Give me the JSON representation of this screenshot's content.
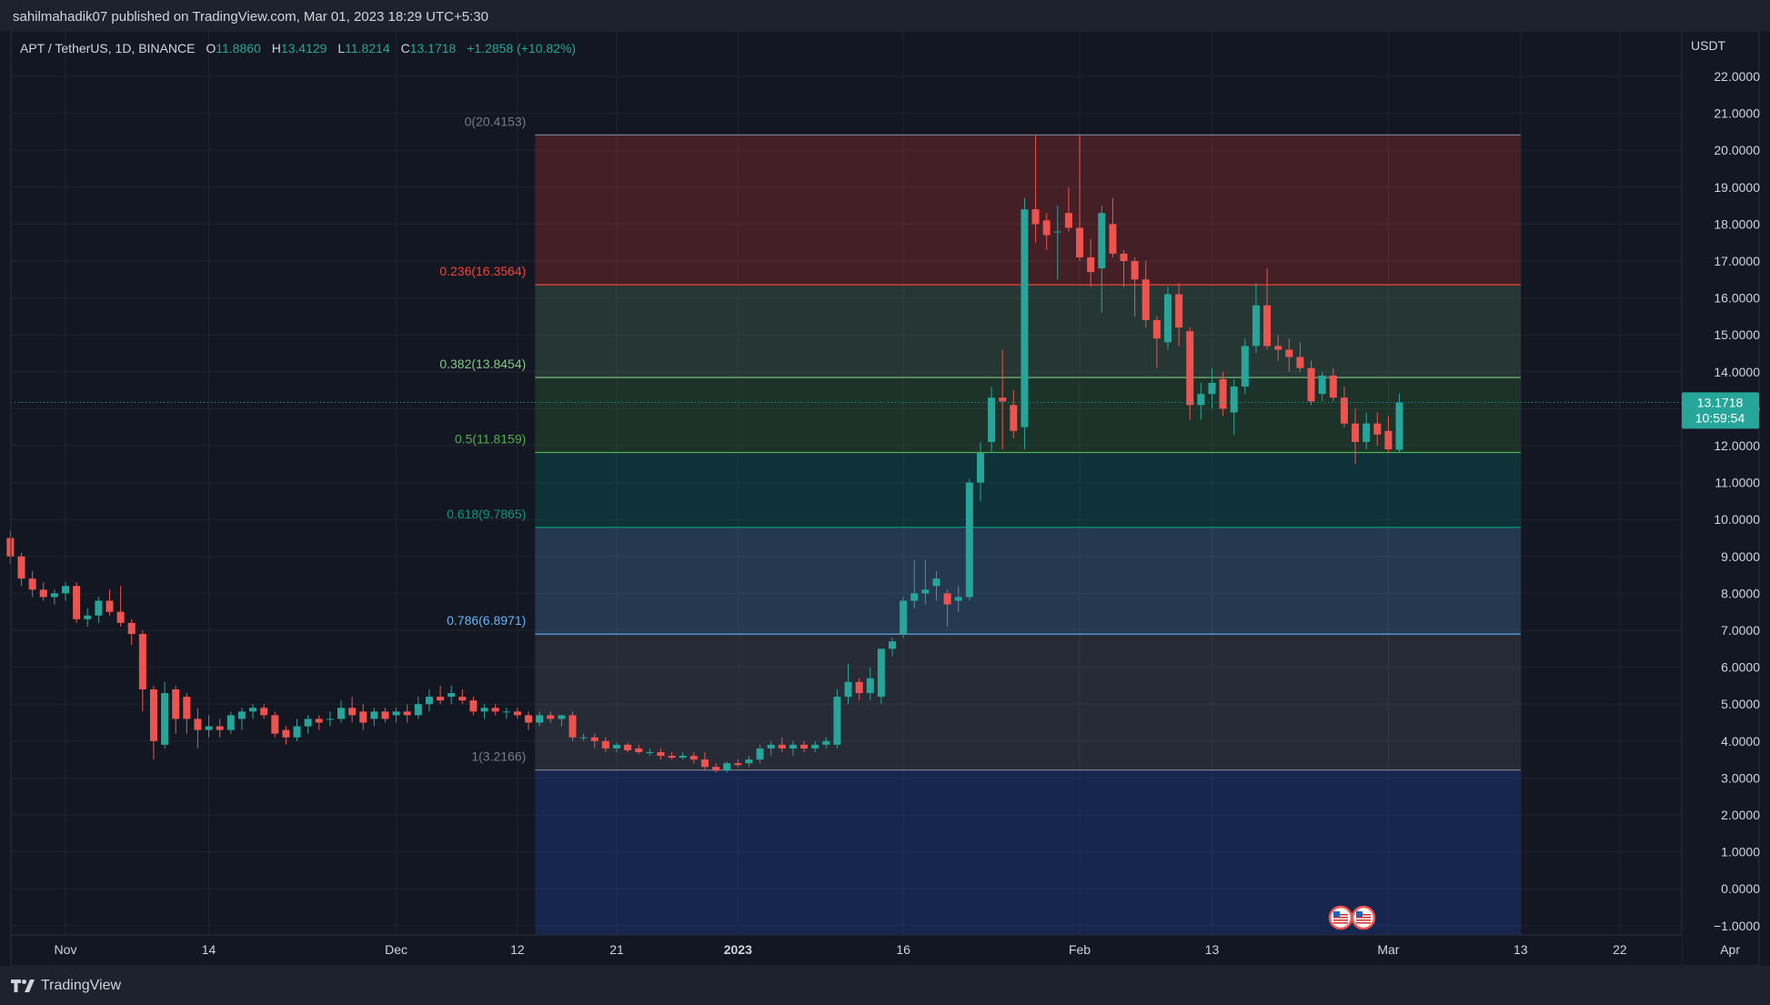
{
  "publish_line": "sahilmahadik07 published on TradingView.com, Mar 01, 2023 18:29 UTC+5:30",
  "legend": {
    "symbol": "APT / TetherUS, 1D, BINANCE",
    "open_label": "O",
    "open": "11.8860",
    "high_label": "H",
    "high": "13.4129",
    "low_label": "L",
    "low": "11.8214",
    "close_label": "C",
    "close": "13.1718",
    "change": "+1.2858 (+10.82%)"
  },
  "footer": {
    "brand": "TradingView"
  },
  "colors": {
    "background": "#131722",
    "up": "#26a69a",
    "down": "#ef5350",
    "grid": "#1f2430",
    "price_tag": "#26a69a"
  },
  "chart_data": {
    "type": "candlestick",
    "currency_label": "USDT",
    "ylim": [
      -1.3,
      23.3
    ],
    "y_ticks": [
      "22.0000",
      "21.0000",
      "20.0000",
      "19.0000",
      "18.0000",
      "17.0000",
      "16.0000",
      "15.0000",
      "14.0000",
      "13.0000",
      "12.0000",
      "11.0000",
      "10.0000",
      "9.0000",
      "8.0000",
      "7.0000",
      "6.0000",
      "5.0000",
      "4.0000",
      "3.0000",
      "2.0000",
      "1.0000",
      "0.0000",
      "−1.0000"
    ],
    "x_ticks": [
      {
        "label": "Nov",
        "day": 0
      },
      {
        "label": "14",
        "day": 13
      },
      {
        "label": "Dec",
        "day": 30
      },
      {
        "label": "12",
        "day": 41
      },
      {
        "label": "21",
        "day": 50
      },
      {
        "label": "2023",
        "day": 61
      },
      {
        "label": "16",
        "day": 76
      },
      {
        "label": "Feb",
        "day": 92
      },
      {
        "label": "13",
        "day": 104
      },
      {
        "label": "Mar",
        "day": 120
      },
      {
        "label": "13",
        "day": 132
      },
      {
        "label": "22",
        "day": 141
      },
      {
        "label": "Apr",
        "day": 151
      }
    ],
    "x_range_days": [
      -5,
      152
    ],
    "last_price": {
      "value": 13.1718,
      "label": "13.1718",
      "countdown": "10:59:54"
    },
    "fibonacci": {
      "start_day": 42.6,
      "end_day": 132,
      "levels": [
        {
          "ratio_label": "0(20.4153)",
          "price": 20.4153,
          "color": "#787b86",
          "fill": "#f44336",
          "fill_opacity": 0.22
        },
        {
          "ratio_label": "0.236(16.3564)",
          "price": 16.3564,
          "color": "#f44336",
          "fill": "#81c784",
          "fill_opacity": 0.18
        },
        {
          "ratio_label": "0.382(13.8454)",
          "price": 13.8454,
          "color": "#81c784",
          "fill": "#4caf50",
          "fill_opacity": 0.18
        },
        {
          "ratio_label": "0.5(11.8159)",
          "price": 11.8159,
          "color": "#4caf50",
          "fill": "#009688",
          "fill_opacity": 0.22
        },
        {
          "ratio_label": "0.618(9.7865)",
          "price": 9.7865,
          "color": "#089981",
          "fill": "#64b5f6",
          "fill_opacity": 0.22
        },
        {
          "ratio_label": "0.786(6.8971)",
          "price": 6.8971,
          "color": "#64b5f6",
          "fill": "#787b86",
          "fill_opacity": 0.2
        },
        {
          "ratio_label": "1(3.2166)",
          "price": 3.2166,
          "color": "#787b86",
          "fill": "#2962ff",
          "fill_opacity": 0.2
        }
      ]
    },
    "candles": [
      [
        -5,
        9.5,
        9.7,
        8.8,
        9.0
      ],
      [
        -4,
        9.0,
        9.1,
        8.2,
        8.4
      ],
      [
        -3,
        8.4,
        8.6,
        7.9,
        8.1
      ],
      [
        -2,
        8.1,
        8.3,
        7.8,
        7.9
      ],
      [
        -1,
        7.9,
        8.1,
        7.7,
        8.0
      ],
      [
        0,
        8.0,
        8.3,
        7.8,
        8.2
      ],
      [
        1,
        8.2,
        8.3,
        7.2,
        7.3
      ],
      [
        2,
        7.3,
        7.6,
        7.1,
        7.4
      ],
      [
        3,
        7.4,
        7.9,
        7.2,
        7.8
      ],
      [
        4,
        7.8,
        8.1,
        7.4,
        7.5
      ],
      [
        5,
        7.5,
        8.2,
        7.1,
        7.2
      ],
      [
        6,
        7.2,
        7.3,
        6.6,
        6.9
      ],
      [
        7,
        6.9,
        7.0,
        4.8,
        5.4
      ],
      [
        8,
        5.4,
        5.5,
        3.5,
        4.0
      ],
      [
        9,
        3.9,
        5.6,
        3.8,
        5.3
      ],
      [
        10,
        5.4,
        5.5,
        4.2,
        4.6
      ],
      [
        11,
        5.2,
        5.3,
        4.2,
        4.6
      ],
      [
        12,
        4.6,
        4.9,
        3.8,
        4.3
      ],
      [
        13,
        4.3,
        4.7,
        4.1,
        4.4
      ],
      [
        14,
        4.4,
        4.6,
        4.1,
        4.3
      ],
      [
        15,
        4.3,
        4.8,
        4.2,
        4.7
      ],
      [
        16,
        4.6,
        4.9,
        4.3,
        4.8
      ],
      [
        17,
        4.8,
        5.0,
        4.6,
        4.9
      ],
      [
        18,
        4.9,
        5.0,
        4.6,
        4.7
      ],
      [
        19,
        4.7,
        4.8,
        4.1,
        4.2
      ],
      [
        20,
        4.3,
        4.4,
        3.9,
        4.1
      ],
      [
        21,
        4.1,
        4.6,
        4.0,
        4.4
      ],
      [
        22,
        4.4,
        4.7,
        4.2,
        4.6
      ],
      [
        23,
        4.6,
        4.7,
        4.3,
        4.5
      ],
      [
        24,
        4.6,
        4.8,
        4.4,
        4.6
      ],
      [
        25,
        4.6,
        5.1,
        4.5,
        4.9
      ],
      [
        26,
        4.9,
        5.2,
        4.5,
        4.7
      ],
      [
        27,
        4.8,
        5.0,
        4.3,
        4.5
      ],
      [
        28,
        4.6,
        4.9,
        4.4,
        4.8
      ],
      [
        29,
        4.8,
        4.9,
        4.5,
        4.6
      ],
      [
        30,
        4.7,
        4.9,
        4.5,
        4.8
      ],
      [
        31,
        4.8,
        5.0,
        4.5,
        4.7
      ],
      [
        32,
        4.7,
        5.2,
        4.6,
        5.0
      ],
      [
        33,
        5.0,
        5.4,
        4.8,
        5.2
      ],
      [
        34,
        5.2,
        5.5,
        5.0,
        5.1
      ],
      [
        35,
        5.2,
        5.5,
        5.0,
        5.3
      ],
      [
        36,
        5.2,
        5.4,
        5.0,
        5.1
      ],
      [
        37,
        5.1,
        5.2,
        4.7,
        4.8
      ],
      [
        38,
        4.8,
        5.0,
        4.6,
        4.9
      ],
      [
        39,
        4.9,
        5.0,
        4.7,
        4.8
      ],
      [
        40,
        4.8,
        4.9,
        4.6,
        4.8
      ],
      [
        41,
        4.8,
        4.9,
        4.6,
        4.7
      ],
      [
        42,
        4.7,
        4.8,
        4.3,
        4.5
      ],
      [
        43,
        4.5,
        4.8,
        4.4,
        4.7
      ],
      [
        44,
        4.7,
        4.8,
        4.5,
        4.6
      ],
      [
        45,
        4.6,
        4.7,
        4.4,
        4.7
      ],
      [
        46,
        4.7,
        4.8,
        4.0,
        4.1
      ],
      [
        47,
        4.1,
        4.2,
        4.0,
        4.1
      ],
      [
        48,
        4.1,
        4.2,
        3.8,
        4.0
      ],
      [
        49,
        4.0,
        4.1,
        3.7,
        3.8
      ],
      [
        50,
        3.8,
        3.95,
        3.7,
        3.9
      ],
      [
        51,
        3.9,
        3.95,
        3.7,
        3.75
      ],
      [
        52,
        3.8,
        3.9,
        3.65,
        3.7
      ],
      [
        53,
        3.7,
        3.8,
        3.6,
        3.7
      ],
      [
        54,
        3.7,
        3.8,
        3.5,
        3.6
      ],
      [
        55,
        3.6,
        3.7,
        3.5,
        3.55
      ],
      [
        56,
        3.55,
        3.7,
        3.5,
        3.6
      ],
      [
        57,
        3.6,
        3.7,
        3.4,
        3.5
      ],
      [
        58,
        3.5,
        3.7,
        3.2,
        3.3
      ],
      [
        59,
        3.3,
        3.4,
        3.15,
        3.2
      ],
      [
        60,
        3.2,
        3.45,
        3.15,
        3.4
      ],
      [
        61,
        3.4,
        3.5,
        3.3,
        3.35
      ],
      [
        62,
        3.4,
        3.6,
        3.3,
        3.5
      ],
      [
        63,
        3.5,
        3.9,
        3.4,
        3.8
      ],
      [
        64,
        3.8,
        4.0,
        3.6,
        3.9
      ],
      [
        65,
        3.9,
        4.1,
        3.7,
        3.8
      ],
      [
        66,
        3.8,
        4.0,
        3.6,
        3.9
      ],
      [
        67,
        3.9,
        4.0,
        3.7,
        3.8
      ],
      [
        68,
        3.8,
        4.0,
        3.7,
        3.9
      ],
      [
        69,
        3.9,
        4.1,
        3.8,
        4.0
      ],
      [
        70,
        3.9,
        5.4,
        3.8,
        5.2
      ],
      [
        71,
        5.2,
        6.1,
        5.0,
        5.6
      ],
      [
        72,
        5.6,
        5.7,
        5.1,
        5.3
      ],
      [
        73,
        5.3,
        6.0,
        5.1,
        5.7
      ],
      [
        74,
        5.2,
        6.5,
        5.0,
        6.5
      ],
      [
        75,
        6.5,
        6.8,
        6.3,
        6.7
      ],
      [
        76,
        6.9,
        7.9,
        6.8,
        7.8
      ],
      [
        77,
        7.8,
        8.9,
        7.6,
        8.0
      ],
      [
        78,
        8.0,
        8.9,
        7.7,
        8.1
      ],
      [
        79,
        8.2,
        8.6,
        7.8,
        8.4
      ],
      [
        80,
        8.0,
        8.1,
        7.1,
        7.7
      ],
      [
        81,
        7.8,
        8.2,
        7.5,
        7.9
      ],
      [
        82,
        7.9,
        11.1,
        7.8,
        11.0
      ],
      [
        83,
        11.0,
        12.1,
        10.5,
        11.8
      ],
      [
        84,
        12.1,
        13.6,
        11.8,
        13.3
      ],
      [
        85,
        13.3,
        14.6,
        11.9,
        13.2
      ],
      [
        86,
        13.1,
        13.5,
        12.2,
        12.4
      ],
      [
        87,
        12.5,
        18.7,
        11.9,
        18.4
      ],
      [
        88,
        18.4,
        20.4,
        17.5,
        18.0
      ],
      [
        89,
        18.1,
        18.3,
        17.3,
        17.7
      ],
      [
        90,
        17.8,
        18.5,
        16.5,
        17.8
      ],
      [
        91,
        18.3,
        19.0,
        17.8,
        17.9
      ],
      [
        92,
        17.9,
        20.4,
        17.0,
        17.1
      ],
      [
        93,
        17.1,
        17.6,
        16.3,
        16.7
      ],
      [
        94,
        16.8,
        18.5,
        15.6,
        18.3
      ],
      [
        95,
        18.0,
        18.7,
        17.1,
        17.2
      ],
      [
        96,
        17.2,
        17.3,
        16.3,
        17.0
      ],
      [
        97,
        17.0,
        17.1,
        15.5,
        16.5
      ],
      [
        98,
        16.5,
        17.0,
        15.2,
        15.4
      ],
      [
        99,
        15.4,
        15.5,
        14.1,
        14.9
      ],
      [
        100,
        14.8,
        16.3,
        14.6,
        16.1
      ],
      [
        101,
        16.1,
        16.4,
        14.7,
        15.2
      ],
      [
        102,
        15.1,
        15.2,
        12.7,
        13.1
      ],
      [
        103,
        13.1,
        13.7,
        12.7,
        13.4
      ],
      [
        104,
        13.4,
        14.1,
        13.0,
        13.7
      ],
      [
        105,
        13.8,
        14.0,
        12.8,
        13.0
      ],
      [
        106,
        12.9,
        13.8,
        12.3,
        13.6
      ],
      [
        107,
        13.6,
        14.9,
        13.4,
        14.7
      ],
      [
        108,
        14.7,
        16.4,
        14.5,
        15.8
      ],
      [
        109,
        15.8,
        16.8,
        14.6,
        14.7
      ],
      [
        110,
        14.7,
        15.0,
        14.3,
        14.6
      ],
      [
        111,
        14.6,
        14.9,
        14.0,
        14.4
      ],
      [
        112,
        14.4,
        14.8,
        14.0,
        14.1
      ],
      [
        113,
        14.1,
        14.3,
        13.1,
        13.2
      ],
      [
        114,
        13.4,
        14.0,
        13.2,
        13.9
      ],
      [
        115,
        13.9,
        14.1,
        13.2,
        13.3
      ],
      [
        116,
        13.3,
        13.6,
        12.5,
        12.6
      ],
      [
        117,
        12.6,
        13.0,
        11.5,
        12.1
      ],
      [
        118,
        12.1,
        12.9,
        11.9,
        12.6
      ],
      [
        119,
        12.6,
        12.9,
        12.0,
        12.3
      ],
      [
        120,
        12.4,
        12.8,
        11.8,
        11.9
      ],
      [
        121,
        11.886,
        13.4129,
        11.8214,
        13.1718
      ]
    ]
  }
}
